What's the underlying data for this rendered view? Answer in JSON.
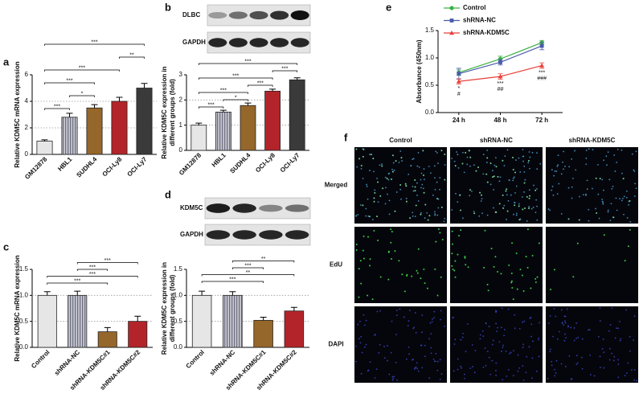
{
  "chart_data": [
    {
      "type": "bar",
      "label": "a",
      "ylabel": [
        "Relative KDM5C mRNA expression"
      ],
      "categories": [
        "GM12878",
        "HBL1",
        "SUDHL4",
        "OCI-Ly8",
        "OCI-Ly7"
      ],
      "values": [
        1.0,
        2.8,
        3.5,
        4.0,
        5.0
      ],
      "errors": [
        0.1,
        0.3,
        0.25,
        0.3,
        0.35
      ],
      "colors": [
        "#e6e6e6",
        "#a9aab8",
        "#96672a",
        "#b3242a",
        "#3a3a3a"
      ],
      "ylim": [
        0,
        6
      ],
      "yticks": [
        0,
        2,
        4,
        6
      ],
      "grid": true,
      "brackets": [
        {
          "label": "***",
          "between": [
            0,
            1
          ]
        },
        {
          "label": "*",
          "between": [
            1,
            2
          ]
        },
        {
          "label": "***",
          "between": [
            0,
            2
          ]
        },
        {
          "label": "***",
          "between": [
            0,
            3
          ]
        },
        {
          "label": "**",
          "between": [
            3,
            4
          ]
        },
        {
          "label": "***",
          "between": [
            0,
            4
          ]
        }
      ]
    },
    {
      "type": "bar",
      "label": "b",
      "ylabel": [
        "Relative KDM5C expression in",
        "different groups (fold)"
      ],
      "categories": [
        "GM12878",
        "HBL1",
        "SUDHL4",
        "OCI-Ly8",
        "OCI-Ly7"
      ],
      "values": [
        1.0,
        1.52,
        1.78,
        2.35,
        2.8
      ],
      "errors": [
        0.08,
        0.07,
        0.1,
        0.08,
        0.08
      ],
      "colors": [
        "#e6e6e6",
        "#a9aab8",
        "#96672a",
        "#b3242a",
        "#3a3a3a"
      ],
      "ylim": [
        0,
        3
      ],
      "yticks": [
        0,
        1,
        2,
        3
      ],
      "grid": true,
      "brackets": [
        {
          "label": "***",
          "between": [
            0,
            1
          ]
        },
        {
          "label": "*",
          "between": [
            1,
            2
          ]
        },
        {
          "label": "***",
          "between": [
            0,
            2
          ]
        },
        {
          "label": "***",
          "between": [
            2,
            3
          ]
        },
        {
          "label": "***",
          "between": [
            0,
            3
          ]
        },
        {
          "label": "***",
          "between": [
            3,
            4
          ]
        },
        {
          "label": "***",
          "between": [
            0,
            4
          ]
        }
      ]
    },
    {
      "type": "bar",
      "label": "c",
      "ylabel": [
        "Relative KDM5C mRNA expression"
      ],
      "categories": [
        "Control",
        "shRNA-NC",
        "shRNA-KDM5C#1",
        "shRNA-KDM5C#2"
      ],
      "values": [
        1.0,
        1.0,
        0.3,
        0.5
      ],
      "errors": [
        0.07,
        0.08,
        0.08,
        0.1
      ],
      "colors": [
        "#e6e6e6",
        "#a9aab8",
        "#96672a",
        "#b3242a"
      ],
      "ylim": [
        0,
        1.5
      ],
      "yticks": [
        {
          "value": 0,
          "label": "0.0"
        },
        0.5,
        {
          "value": 1,
          "label": "1.0"
        },
        1.5
      ],
      "grid": true,
      "brackets": [
        {
          "label": "***",
          "between": [
            0,
            2
          ]
        },
        {
          "label": "***",
          "between": [
            0,
            3
          ]
        },
        {
          "label": "***",
          "between": [
            1,
            2
          ]
        },
        {
          "label": "***",
          "between": [
            1,
            3
          ]
        }
      ]
    },
    {
      "type": "bar",
      "label": "d",
      "ylabel": [
        "Relative KDM5C expression in",
        "different groups (fold)"
      ],
      "categories": [
        "Control",
        "shRNA-NC",
        "shRNA-KDM5C#1",
        "shRNA-KDM5C#2"
      ],
      "values": [
        1.0,
        1.0,
        0.52,
        0.7
      ],
      "errors": [
        0.08,
        0.07,
        0.06,
        0.07
      ],
      "colors": [
        "#e6e6e6",
        "#a9aab8",
        "#96672a",
        "#b3242a"
      ],
      "ylim": [
        0,
        1.5
      ],
      "yticks": [
        {
          "value": 0,
          "label": "0.0"
        },
        0.5,
        {
          "value": 1,
          "label": "1.0"
        },
        1.5
      ],
      "grid": true,
      "brackets": [
        {
          "label": "***",
          "between": [
            0,
            2
          ]
        },
        {
          "label": "**",
          "between": [
            0,
            3
          ]
        },
        {
          "label": "***",
          "between": [
            1,
            2
          ]
        },
        {
          "label": "**",
          "between": [
            1,
            3
          ]
        }
      ]
    },
    {
      "type": "line",
      "label": "e",
      "ylabel": [
        "Absorbance (450nm)"
      ],
      "categories": [
        "24 h",
        "48 h",
        "72 h"
      ],
      "series": [
        {
          "name": "Control",
          "color": "#3cb043",
          "values": [
            0.73,
            0.98,
            1.28
          ],
          "errors": [
            0.05,
            0.05,
            0.04
          ]
        },
        {
          "name": "shRNA-NC",
          "color": "#4a5bab",
          "values": [
            0.71,
            0.92,
            1.22
          ],
          "errors": [
            0.1,
            0.05,
            0.07
          ]
        },
        {
          "name": "shRNA-KDM5C",
          "color": "#e8403a",
          "values": [
            0.57,
            0.66,
            0.86
          ],
          "errors": [
            0.05,
            0.05,
            0.05
          ]
        }
      ],
      "point_labels": [
        [
          "*",
          "#"
        ],
        [
          "***",
          "##"
        ],
        [
          "***",
          "###"
        ]
      ],
      "ylim": [
        0,
        1.5
      ],
      "yticks": [
        {
          "value": 0,
          "label": "0.0"
        },
        0.5,
        {
          "value": 1,
          "label": "1.0"
        },
        1.5
      ],
      "grid": false
    }
  ],
  "blots": [
    {
      "label": "b",
      "rows": [
        "DLBC",
        "GAPDH"
      ]
    },
    {
      "label": "d",
      "rows": [
        "KDM5C",
        "GAPDH"
      ]
    }
  ],
  "micrographs": {
    "label": "f",
    "columns": [
      "Control",
      "shRNA-NC",
      "shRNA-KDM5C"
    ],
    "rows": [
      "Merged",
      "EdU",
      "DAPI"
    ]
  }
}
